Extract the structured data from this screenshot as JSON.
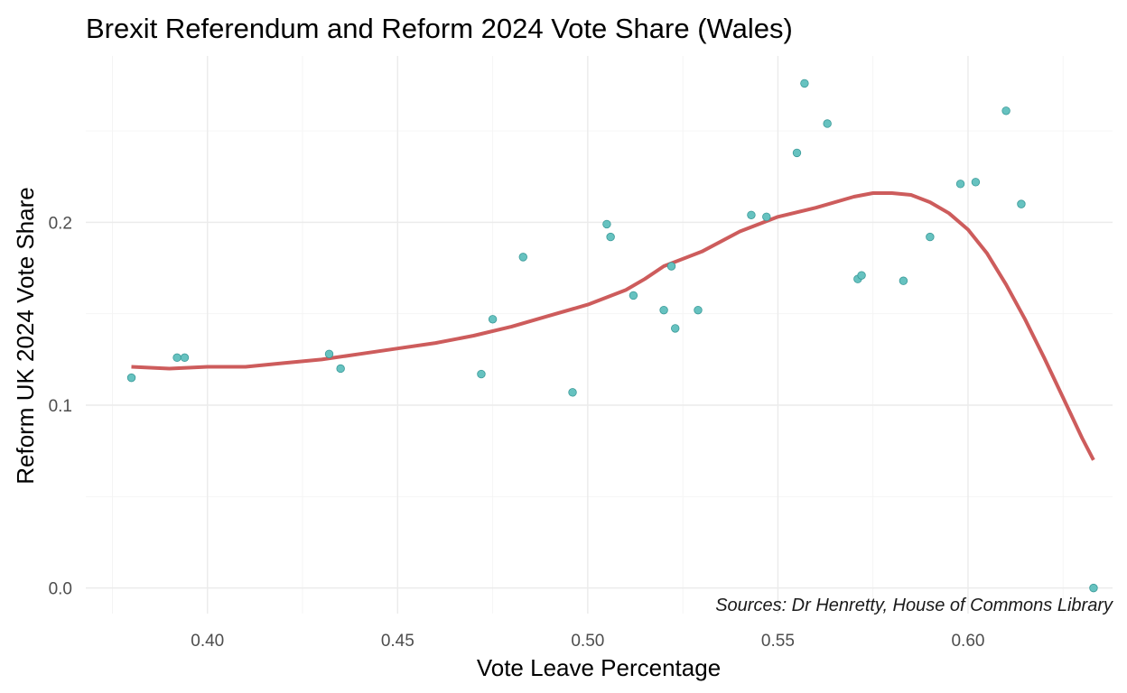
{
  "chart_data": {
    "type": "scatter",
    "title": "Brexit Referendum and Reform 2024 Vote Share (Wales)",
    "xlabel": "Vote Leave Percentage",
    "ylabel": "Reform UK 2024 Vote Share",
    "caption": "Sources: Dr Henretty, House of Commons Library",
    "xlim": [
      0.368,
      0.638
    ],
    "ylim": [
      -0.014,
      0.291
    ],
    "x_ticks": [
      0.4,
      0.45,
      0.5,
      0.55,
      0.6
    ],
    "x_tick_labels": [
      "0.40",
      "0.45",
      "0.50",
      "0.55",
      "0.60"
    ],
    "y_ticks": [
      0.0,
      0.1,
      0.2
    ],
    "y_tick_labels": [
      "0.0",
      "0.1",
      "0.2"
    ],
    "grid": true,
    "colors": {
      "points": "#66c2c0",
      "point_outline": "#3a9a98",
      "trend": "#cd5c5c"
    },
    "series": [
      {
        "values": [
          {
            "x": 0.38,
            "y": 0.115
          },
          {
            "x": 0.392,
            "y": 0.126
          },
          {
            "x": 0.394,
            "y": 0.126
          },
          {
            "x": 0.432,
            "y": 0.128
          },
          {
            "x": 0.435,
            "y": 0.12
          },
          {
            "x": 0.472,
            "y": 0.117
          },
          {
            "x": 0.475,
            "y": 0.147
          },
          {
            "x": 0.483,
            "y": 0.181
          },
          {
            "x": 0.496,
            "y": 0.107
          },
          {
            "x": 0.505,
            "y": 0.199
          },
          {
            "x": 0.506,
            "y": 0.192
          },
          {
            "x": 0.512,
            "y": 0.16
          },
          {
            "x": 0.52,
            "y": 0.152
          },
          {
            "x": 0.522,
            "y": 0.176
          },
          {
            "x": 0.523,
            "y": 0.142
          },
          {
            "x": 0.529,
            "y": 0.152
          },
          {
            "x": 0.543,
            "y": 0.204
          },
          {
            "x": 0.547,
            "y": 0.203
          },
          {
            "x": 0.555,
            "y": 0.238
          },
          {
            "x": 0.557,
            "y": 0.276
          },
          {
            "x": 0.563,
            "y": 0.254
          },
          {
            "x": 0.571,
            "y": 0.169
          },
          {
            "x": 0.572,
            "y": 0.171
          },
          {
            "x": 0.583,
            "y": 0.168
          },
          {
            "x": 0.59,
            "y": 0.192
          },
          {
            "x": 0.598,
            "y": 0.221
          },
          {
            "x": 0.602,
            "y": 0.222
          },
          {
            "x": 0.61,
            "y": 0.261
          },
          {
            "x": 0.614,
            "y": 0.21
          },
          {
            "x": 0.633,
            "y": 0.0
          }
        ]
      }
    ],
    "trend_line": {
      "type": "loess",
      "points": [
        {
          "x": 0.38,
          "y": 0.121
        },
        {
          "x": 0.39,
          "y": 0.12
        },
        {
          "x": 0.4,
          "y": 0.121
        },
        {
          "x": 0.41,
          "y": 0.121
        },
        {
          "x": 0.42,
          "y": 0.123
        },
        {
          "x": 0.43,
          "y": 0.125
        },
        {
          "x": 0.44,
          "y": 0.128
        },
        {
          "x": 0.45,
          "y": 0.131
        },
        {
          "x": 0.46,
          "y": 0.134
        },
        {
          "x": 0.47,
          "y": 0.138
        },
        {
          "x": 0.48,
          "y": 0.143
        },
        {
          "x": 0.49,
          "y": 0.149
        },
        {
          "x": 0.5,
          "y": 0.155
        },
        {
          "x": 0.51,
          "y": 0.163
        },
        {
          "x": 0.515,
          "y": 0.169
        },
        {
          "x": 0.52,
          "y": 0.176
        },
        {
          "x": 0.53,
          "y": 0.184
        },
        {
          "x": 0.54,
          "y": 0.195
        },
        {
          "x": 0.55,
          "y": 0.203
        },
        {
          "x": 0.56,
          "y": 0.208
        },
        {
          "x": 0.57,
          "y": 0.214
        },
        {
          "x": 0.575,
          "y": 0.216
        },
        {
          "x": 0.58,
          "y": 0.216
        },
        {
          "x": 0.585,
          "y": 0.215
        },
        {
          "x": 0.59,
          "y": 0.211
        },
        {
          "x": 0.595,
          "y": 0.205
        },
        {
          "x": 0.6,
          "y": 0.196
        },
        {
          "x": 0.605,
          "y": 0.183
        },
        {
          "x": 0.61,
          "y": 0.166
        },
        {
          "x": 0.615,
          "y": 0.147
        },
        {
          "x": 0.62,
          "y": 0.126
        },
        {
          "x": 0.625,
          "y": 0.104
        },
        {
          "x": 0.63,
          "y": 0.082
        },
        {
          "x": 0.633,
          "y": 0.07
        }
      ]
    }
  }
}
